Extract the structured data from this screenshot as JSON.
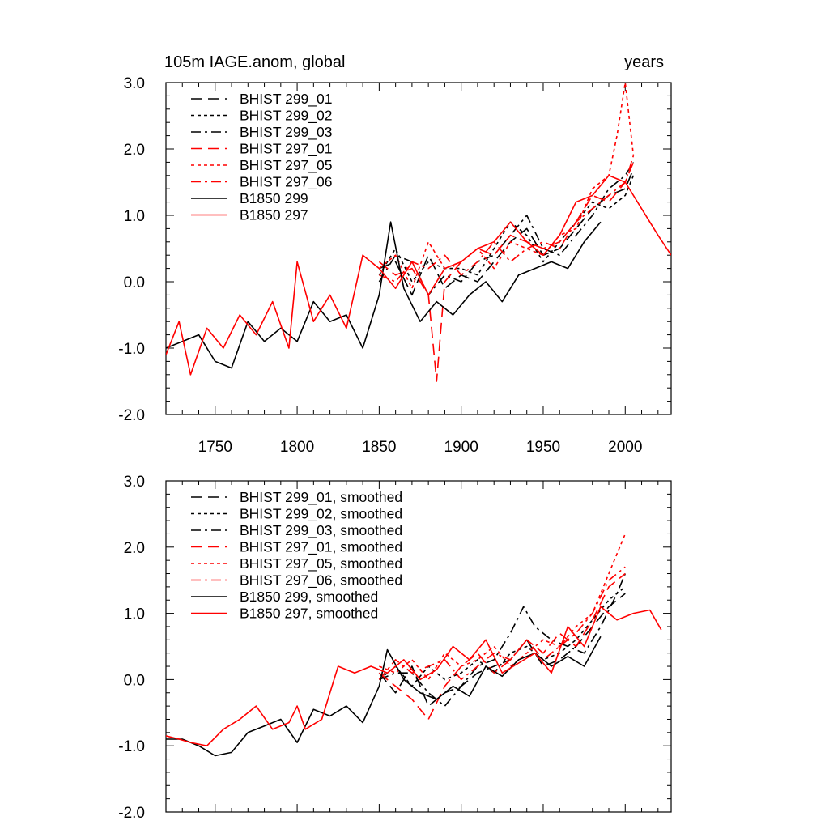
{
  "chart_data": [
    {
      "type": "line",
      "title_left": "105m IAGE.anom, global",
      "title_right": "years",
      "xlim": [
        1720,
        2028
      ],
      "ylim": [
        -2.0,
        3.0
      ],
      "xticks": [
        1750,
        1800,
        1850,
        1900,
        1950,
        2000
      ],
      "xtick_labels": [
        "1750",
        "1800",
        "1850",
        "1900",
        "1950",
        "2000"
      ],
      "yticks": [
        -2.0,
        -1.0,
        0.0,
        1.0,
        2.0,
        3.0
      ],
      "ytick_labels": [
        "-2.0",
        "-1.0",
        "0.0",
        "1.0",
        "2.0",
        "3.0"
      ],
      "legend": "top-left",
      "series": [
        {
          "name": "BHIST 299_01",
          "color": "#000000",
          "dash": "long-dash",
          "x": [
            1850,
            1860,
            1870,
            1880,
            1890,
            1900,
            1910,
            1920,
            1930,
            1940,
            1950,
            1960,
            1970,
            1980,
            1990,
            2000,
            2005
          ],
          "y": [
            0.2,
            0.3,
            -0.2,
            0.4,
            -0.1,
            0.1,
            0.0,
            0.3,
            0.6,
            0.8,
            0.4,
            0.5,
            0.8,
            1.1,
            1.3,
            1.4,
            1.7
          ]
        },
        {
          "name": "BHIST 299_02",
          "color": "#000000",
          "dash": "short-dash",
          "x": [
            1850,
            1860,
            1870,
            1880,
            1890,
            1900,
            1910,
            1920,
            1930,
            1940,
            1950,
            1960,
            1970,
            1980,
            1990,
            2000,
            2005
          ],
          "y": [
            0.1,
            0.5,
            0.0,
            0.3,
            0.2,
            0.2,
            0.1,
            0.5,
            0.9,
            0.7,
            0.3,
            0.6,
            0.9,
            1.2,
            1.1,
            1.3,
            1.6
          ]
        },
        {
          "name": "BHIST 299_03",
          "color": "#000000",
          "dash": "dash-dot",
          "x": [
            1850,
            1860,
            1870,
            1880,
            1890,
            1900,
            1910,
            1920,
            1930,
            1940,
            1950,
            1960,
            1970,
            1980,
            1990,
            2000,
            2005
          ],
          "y": [
            0.0,
            0.4,
            0.3,
            -0.2,
            0.1,
            0.0,
            0.3,
            0.4,
            0.7,
            1.0,
            0.5,
            0.4,
            0.7,
            1.0,
            1.4,
            1.6,
            1.8
          ]
        },
        {
          "name": "BHIST 297_01",
          "color": "#ff0000",
          "dash": "long-dash",
          "x": [
            1850,
            1860,
            1870,
            1880,
            1885,
            1890,
            1900,
            1910,
            1920,
            1930,
            1940,
            1950,
            1960,
            1970,
            1980,
            1990,
            2000,
            2005
          ],
          "y": [
            0.3,
            0.1,
            0.2,
            -0.2,
            -1.5,
            0.0,
            0.3,
            0.5,
            0.4,
            0.7,
            0.6,
            0.5,
            0.6,
            0.9,
            1.3,
            1.2,
            1.5,
            1.8
          ]
        },
        {
          "name": "BHIST 297_05",
          "color": "#ff0000",
          "dash": "short-dash",
          "x": [
            1850,
            1860,
            1870,
            1880,
            1890,
            1900,
            1910,
            1920,
            1930,
            1940,
            1950,
            1960,
            1970,
            1980,
            1990,
            1995,
            2000,
            2005
          ],
          "y": [
            0.2,
            0.4,
            -0.1,
            0.6,
            0.2,
            0.3,
            0.5,
            0.2,
            0.6,
            0.5,
            0.4,
            0.7,
            0.8,
            1.4,
            1.6,
            2.2,
            3.0,
            1.9
          ]
        },
        {
          "name": "BHIST 297_06",
          "color": "#ff0000",
          "dash": "dash-dot",
          "x": [
            1850,
            1860,
            1870,
            1880,
            1890,
            1900,
            1910,
            1920,
            1930,
            1940,
            1950,
            1960,
            1970,
            1980,
            1990,
            2000,
            2005
          ],
          "y": [
            0.1,
            0.0,
            0.3,
            0.2,
            0.4,
            0.1,
            0.3,
            0.6,
            0.3,
            0.5,
            0.6,
            0.5,
            0.9,
            1.1,
            1.3,
            1.5,
            1.9
          ]
        },
        {
          "name": "B1850 299",
          "color": "#000000",
          "dash": "solid",
          "x": [
            1720,
            1730,
            1740,
            1750,
            1760,
            1770,
            1780,
            1790,
            1800,
            1810,
            1820,
            1830,
            1840,
            1850,
            1857,
            1865,
            1875,
            1885,
            1895,
            1905,
            1915,
            1925,
            1935,
            1945,
            1955,
            1965,
            1975,
            1985
          ],
          "y": [
            -1.0,
            -0.9,
            -0.8,
            -1.2,
            -1.3,
            -0.6,
            -0.9,
            -0.7,
            -0.9,
            -0.3,
            -0.6,
            -0.5,
            -1.0,
            -0.2,
            0.9,
            -0.1,
            -0.6,
            -0.3,
            -0.5,
            -0.2,
            0.0,
            -0.3,
            0.1,
            0.2,
            0.3,
            0.2,
            0.6,
            0.9
          ]
        },
        {
          "name": "B1850 297",
          "color": "#ff0000",
          "dash": "solid",
          "x": [
            1720,
            1728,
            1735,
            1745,
            1755,
            1765,
            1775,
            1785,
            1795,
            1800,
            1810,
            1820,
            1830,
            1840,
            1850,
            1860,
            1870,
            1880,
            1890,
            1900,
            1910,
            1920,
            1930,
            1940,
            1950,
            1960,
            1970,
            1980,
            1990,
            2000,
            2010,
            2020,
            2028
          ],
          "y": [
            -1.1,
            -0.6,
            -1.4,
            -0.7,
            -1.0,
            -0.5,
            -0.8,
            -0.3,
            -1.0,
            0.3,
            -0.6,
            -0.2,
            -0.7,
            0.4,
            0.2,
            -0.1,
            0.3,
            -0.2,
            0.2,
            0.3,
            0.5,
            0.6,
            0.9,
            0.6,
            0.4,
            0.7,
            1.2,
            1.3,
            1.6,
            1.5,
            1.1,
            0.7,
            0.4
          ]
        }
      ]
    },
    {
      "type": "line",
      "xlim": [
        1720,
        2028
      ],
      "ylim": [
        -2.0,
        3.0
      ],
      "yticks": [
        -2.0,
        -1.0,
        0.0,
        1.0,
        2.0,
        3.0
      ],
      "ytick_labels": [
        "-2.0",
        "-1.0",
        "0.0",
        "1.0",
        "2.0",
        "3.0"
      ],
      "legend": "top-left",
      "series": [
        {
          "name": "BHIST 299_01, smoothed",
          "color": "#000000",
          "dash": "long-dash",
          "x": [
            1850,
            1860,
            1870,
            1880,
            1890,
            1900,
            1910,
            1920,
            1930,
            1940,
            1950,
            1960,
            1970,
            1980,
            1990,
            2000
          ],
          "y": [
            0.1,
            -0.2,
            0.2,
            -0.4,
            -0.2,
            -0.1,
            0.1,
            0.2,
            0.3,
            0.6,
            0.2,
            0.3,
            0.5,
            0.8,
            1.1,
            1.3
          ]
        },
        {
          "name": "BHIST 299_02, smoothed",
          "color": "#000000",
          "dash": "short-dash",
          "x": [
            1850,
            1860,
            1870,
            1880,
            1890,
            1900,
            1910,
            1920,
            1930,
            1940,
            1950,
            1960,
            1970,
            1980,
            1990,
            2000
          ],
          "y": [
            0.0,
            0.2,
            -0.1,
            0.2,
            0.0,
            0.1,
            0.3,
            0.1,
            0.4,
            0.5,
            0.3,
            0.4,
            0.6,
            0.9,
            1.2,
            1.4
          ]
        },
        {
          "name": "BHIST 299_03, smoothed",
          "color": "#000000",
          "dash": "dash-dot",
          "x": [
            1850,
            1860,
            1870,
            1880,
            1890,
            1900,
            1910,
            1920,
            1930,
            1938,
            1945,
            1955,
            1965,
            1975,
            1985,
            1995,
            2000
          ],
          "y": [
            0.0,
            0.1,
            0.1,
            -0.2,
            -0.4,
            -0.1,
            0.2,
            0.3,
            0.7,
            1.1,
            0.8,
            0.6,
            0.5,
            0.4,
            0.8,
            1.3,
            1.6
          ]
        },
        {
          "name": "BHIST 297_01, smoothed",
          "color": "#ff0000",
          "dash": "long-dash",
          "x": [
            1850,
            1860,
            1870,
            1880,
            1890,
            1900,
            1910,
            1920,
            1930,
            1940,
            1950,
            1960,
            1970,
            1980,
            1990,
            2000
          ],
          "y": [
            0.1,
            -0.1,
            -0.3,
            -0.6,
            -0.1,
            0.2,
            0.4,
            0.1,
            0.3,
            0.6,
            0.4,
            0.7,
            0.5,
            0.9,
            1.4,
            1.6
          ]
        },
        {
          "name": "BHIST 297_05, smoothed",
          "color": "#ff0000",
          "dash": "short-dash",
          "x": [
            1850,
            1860,
            1870,
            1880,
            1890,
            1900,
            1910,
            1920,
            1930,
            1940,
            1950,
            1960,
            1970,
            1980,
            1990,
            2000
          ],
          "y": [
            0.2,
            0.1,
            0.3,
            0.0,
            0.4,
            0.2,
            0.3,
            0.5,
            0.2,
            0.4,
            0.6,
            0.5,
            0.8,
            1.0,
            1.6,
            2.2
          ]
        },
        {
          "name": "BHIST 297_06, smoothed",
          "color": "#ff0000",
          "dash": "dash-dot",
          "x": [
            1850,
            1860,
            1870,
            1880,
            1890,
            1900,
            1910,
            1920,
            1930,
            1940,
            1950,
            1960,
            1970,
            1980,
            1990,
            2000
          ],
          "y": [
            0.0,
            0.3,
            0.1,
            0.2,
            0.3,
            0.0,
            0.2,
            0.4,
            0.3,
            0.6,
            0.3,
            0.5,
            0.7,
            1.0,
            1.5,
            1.7
          ]
        },
        {
          "name": "B1850 299, smoothed",
          "color": "#000000",
          "dash": "solid",
          "x": [
            1720,
            1730,
            1740,
            1750,
            1760,
            1770,
            1780,
            1790,
            1800,
            1810,
            1820,
            1830,
            1840,
            1850,
            1855,
            1865,
            1875,
            1885,
            1895,
            1905,
            1915,
            1925,
            1935,
            1945,
            1955,
            1965,
            1975,
            1985
          ],
          "y": [
            -0.9,
            -0.9,
            -1.0,
            -1.15,
            -1.1,
            -0.8,
            -0.7,
            -0.6,
            -0.95,
            -0.45,
            -0.55,
            -0.4,
            -0.65,
            -0.1,
            0.45,
            0.0,
            -0.2,
            -0.3,
            -0.1,
            -0.25,
            0.2,
            0.05,
            0.3,
            0.4,
            0.2,
            0.35,
            0.2,
            0.65
          ]
        },
        {
          "name": "B1850 297, smoothed",
          "color": "#ff0000",
          "dash": "solid",
          "x": [
            1720,
            1728,
            1735,
            1745,
            1755,
            1765,
            1775,
            1785,
            1795,
            1800,
            1805,
            1815,
            1825,
            1835,
            1845,
            1855,
            1865,
            1875,
            1885,
            1895,
            1905,
            1915,
            1925,
            1935,
            1945,
            1955,
            1965,
            1975,
            1985,
            1995,
            2005,
            2015,
            2022
          ],
          "y": [
            -0.85,
            -0.9,
            -0.95,
            -1.0,
            -0.75,
            -0.6,
            -0.4,
            -0.75,
            -0.65,
            -0.4,
            -0.75,
            -0.6,
            0.2,
            0.1,
            0.2,
            0.1,
            0.3,
            0.0,
            0.15,
            0.5,
            0.3,
            0.6,
            0.1,
            0.25,
            0.4,
            0.1,
            0.8,
            0.5,
            1.1,
            0.9,
            1.0,
            1.05,
            0.75
          ]
        }
      ]
    }
  ]
}
